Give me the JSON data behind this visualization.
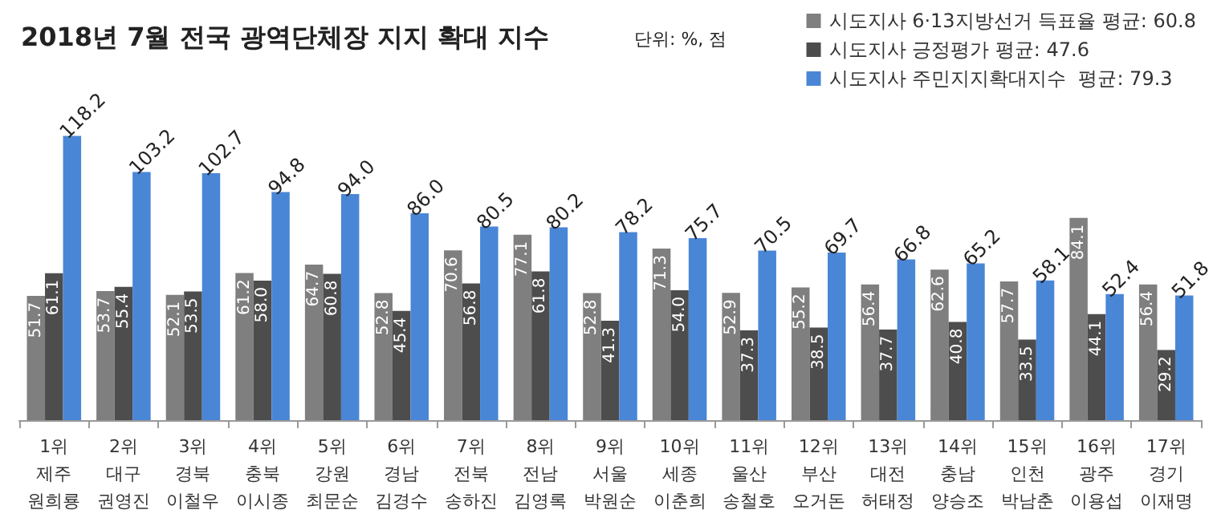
{
  "chart_data": {
    "type": "bar",
    "title": "2018년 7월 전국 광역단체장 지지 확대 지수",
    "subtitle": "단위: %, 점",
    "categories": [
      "1위\n제주\n원희룡",
      "2위\n대구\n권영진",
      "3위\n경북\n이철우",
      "4위\n충북\n이시종",
      "5위\n강원\n최문순",
      "6위\n경남\n김경수",
      "7위\n전북\n송하진",
      "8위\n전남\n김영록",
      "9위\n서울\n박원순",
      "10위\n세종\n이춘희",
      "11위\n울산\n송철호",
      "12위\n부산\n오거돈",
      "13위\n대전\n허태정",
      "14위\n충남\n양승조",
      "15위\n인천\n박남춘",
      "16위\n광주\n이용섭",
      "17위\n경기\n이재명"
    ],
    "series": [
      {
        "name": "시도지사 6·13지방선거 득표율 평균: 60.8",
        "color": "#7f7f7f",
        "values": [
          51.7,
          53.7,
          52.1,
          61.2,
          64.7,
          52.8,
          70.6,
          77.1,
          52.8,
          71.3,
          52.9,
          55.2,
          56.4,
          62.6,
          57.7,
          84.1,
          56.4
        ],
        "value_labels": [
          "51.7",
          "53.7",
          "52.1",
          "61.2",
          "64.7",
          "52.8",
          "70.6",
          "77.1",
          "52.8",
          "71.3",
          "52.9",
          "55.2",
          "56.4",
          "62.6",
          "57.7",
          "84.1",
          "56.4"
        ]
      },
      {
        "name": "시도지사 긍정평가 평균: 47.6",
        "color": "#4d4d4d",
        "values": [
          61.1,
          55.4,
          53.5,
          58.0,
          60.8,
          45.4,
          56.8,
          61.8,
          41.3,
          54.0,
          37.3,
          38.5,
          37.7,
          40.8,
          33.5,
          44.1,
          29.2
        ],
        "value_labels": [
          "61.1",
          "55.4",
          "53.5",
          "58.0",
          "60.8",
          "45.4",
          "56.8",
          "61.8",
          "41.3",
          "54.0",
          "37.3",
          "38.5",
          "37.7",
          "40.8",
          "33.5",
          "44.1",
          "29.2"
        ]
      },
      {
        "name": "시도지사 주민지지확대지수  평균: 79.3",
        "color": "#4a86d6",
        "values": [
          118.2,
          103.2,
          102.7,
          94.8,
          94.0,
          86.0,
          80.5,
          80.2,
          78.2,
          75.7,
          70.5,
          69.7,
          66.8,
          65.2,
          58.1,
          52.4,
          51.8
        ],
        "value_labels": [
          "118.2",
          "103.2",
          "102.7",
          "94.8",
          "94.0",
          "86.0",
          "80.5",
          "80.2",
          "78.2",
          "75.7",
          "70.5",
          "69.7",
          "66.8",
          "65.2",
          "58.1",
          "52.4",
          "51.8"
        ]
      }
    ],
    "legend": "top right",
    "grid": false
  }
}
